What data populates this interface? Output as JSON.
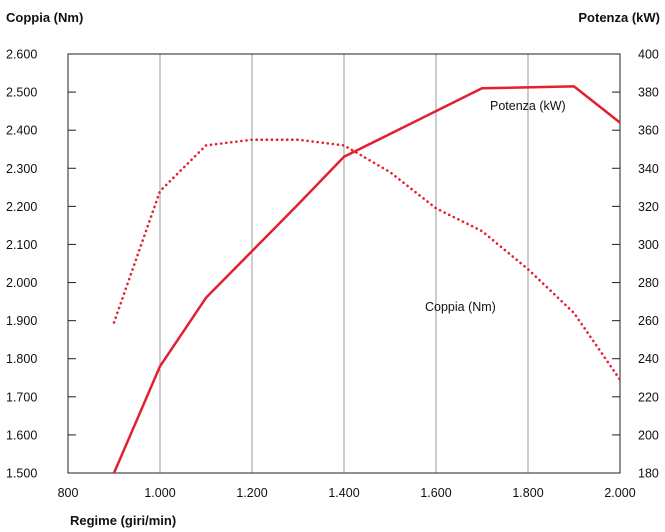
{
  "chart_data": {
    "type": "line",
    "xlabel": "Regime (giri/min)",
    "ylabel_left": "Coppia (Nm)",
    "ylabel_right": "Potenza (kW)",
    "xlim": [
      800,
      2000
    ],
    "ylim_left": [
      1500,
      2600
    ],
    "ylim_right": [
      180,
      400
    ],
    "x_ticks": [
      800,
      1000,
      1200,
      1400,
      1600,
      1800,
      2000
    ],
    "x_tick_labels": [
      "800",
      "1.000",
      "1.200",
      "1.400",
      "1.600",
      "1.800",
      "2.000"
    ],
    "y_left_ticks": [
      1500,
      1600,
      1700,
      1800,
      1900,
      2000,
      2100,
      2200,
      2300,
      2400,
      2500,
      2600
    ],
    "y_left_tick_labels": [
      "1.500",
      "1.600",
      "1.700",
      "1.800",
      "1.900",
      "2.000",
      "2.100",
      "2.200",
      "2.300",
      "2.400",
      "2.500",
      "2.600"
    ],
    "y_right_ticks": [
      180,
      200,
      220,
      240,
      260,
      280,
      300,
      320,
      340,
      360,
      380,
      400
    ],
    "y_right_tick_labels": [
      "180",
      "200",
      "220",
      "240",
      "260",
      "280",
      "300",
      "320",
      "340",
      "360",
      "380",
      "400"
    ],
    "grid": "vertical",
    "series": [
      {
        "name": "Potenza (kW)",
        "axis": "right",
        "style": "solid",
        "color": "#e3202e",
        "x": [
          900,
          1000,
          1100,
          1300,
          1400,
          1700,
          1900,
          2000
        ],
        "y": [
          180,
          236,
          272,
          321,
          346,
          382,
          383,
          364
        ]
      },
      {
        "name": "Coppia (Nm)",
        "axis": "left",
        "style": "dotted",
        "color": "#e3202e",
        "x": [
          900,
          1000,
          1100,
          1200,
          1300,
          1400,
          1500,
          1600,
          1700,
          1800,
          1900,
          2000
        ],
        "y": [
          1895,
          2240,
          2360,
          2375,
          2375,
          2360,
          2290,
          2195,
          2135,
          2035,
          1920,
          1745
        ]
      }
    ]
  }
}
